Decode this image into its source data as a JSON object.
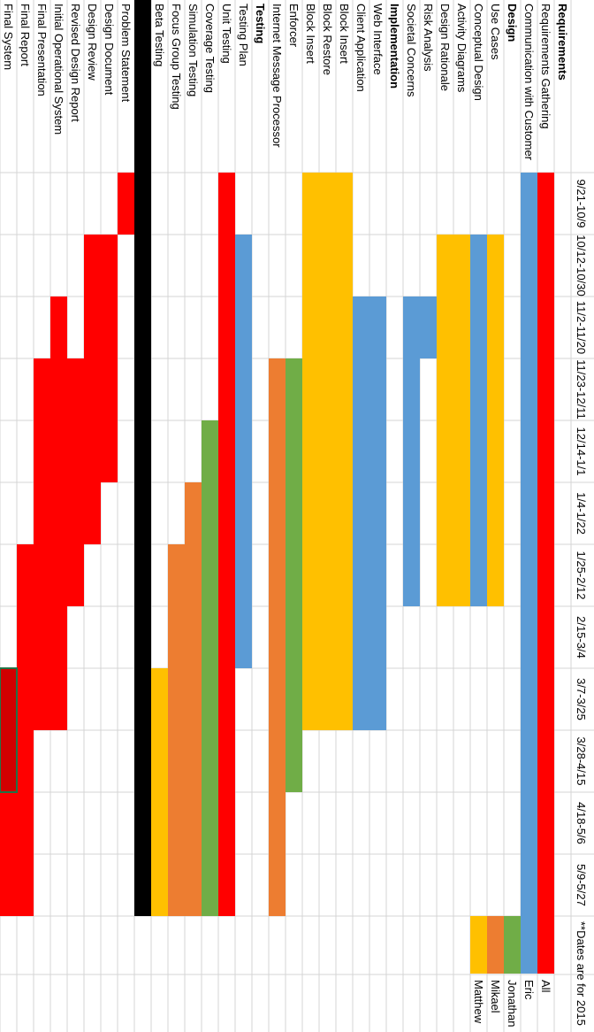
{
  "chart_data": {
    "type": "gantt",
    "periods": [
      "9/21-10/9",
      "10/12-10/30",
      "11/2-11/20",
      "11/23-12/11",
      "12/14-1/1",
      "1/4-1/22",
      "1/25-2/12",
      "2/15-3/4",
      "3/7-3/25",
      "3/28-4/15",
      "4/18-5/6",
      "5/9-5/27"
    ],
    "note": "**Dates are for 2015",
    "legend": [
      {
        "name": "All",
        "color": "#ff0000"
      },
      {
        "name": "Eric",
        "color": "#5b9bd5"
      },
      {
        "name": "Jonathan",
        "color": "#70ad47"
      },
      {
        "name": "Mikael",
        "color": "#ed7d31"
      },
      {
        "name": "Matthew",
        "color": "#ffc000"
      }
    ],
    "rows": [
      {
        "label": "Requirements",
        "bold": true
      },
      {
        "label": "Requirements Gathering",
        "color": "#ff0000",
        "start": 0,
        "end": 12
      },
      {
        "label": "Communication with Customer",
        "color": "#5b9bd5",
        "start": 0,
        "end": 12
      },
      {
        "label": "Design",
        "bold": true
      },
      {
        "label": "Use Cases",
        "color": "#ffc000",
        "start": 1,
        "end": 7
      },
      {
        "label": "Conceptual Design",
        "color": "#5b9bd5",
        "start": 1,
        "end": 7
      },
      {
        "label": "Activity Diagrams",
        "color": "#ffc000",
        "start": 1,
        "end": 7
      },
      {
        "label": "Design Rationale",
        "color": "#ffc000",
        "start": 1,
        "end": 7
      },
      {
        "label": "Risk Analysis",
        "color": "#5b9bd5",
        "start": 2,
        "end": 3
      },
      {
        "label": "Societal Concerns",
        "color": "#5b9bd5",
        "start": 2,
        "end": 7
      },
      {
        "label": "Implementation",
        "bold": true
      },
      {
        "label": "Web Interface",
        "color": "#5b9bd5",
        "start": 2,
        "end": 9
      },
      {
        "label": "Client Application",
        "color": "#5b9bd5",
        "start": 2,
        "end": 9
      },
      {
        "label": "Block Insert",
        "color": "#ffc000",
        "start": 0,
        "end": 9
      },
      {
        "label": "Block Restore",
        "color": "#ffc000",
        "start": 0,
        "end": 9
      },
      {
        "label": "Block Insert",
        "color": "#ffc000",
        "start": 0,
        "end": 9
      },
      {
        "label": "Enforcer",
        "color": "#70ad47",
        "start": 3,
        "end": 10
      },
      {
        "label": "Internet Message Processor",
        "color": "#ed7d31",
        "start": 3,
        "end": 12
      },
      {
        "label": "Testing",
        "bold": true
      },
      {
        "label": "Testing Plan",
        "color": "#5b9bd5",
        "start": 1,
        "end": 8
      },
      {
        "label": "Unit Testing",
        "color": "#ff0000",
        "start": 0,
        "end": 12
      },
      {
        "label": "Coverage Testing",
        "color": "#70ad47",
        "start": 4,
        "end": 12
      },
      {
        "label": "Simulation Testing",
        "color": "#ed7d31",
        "start": 5,
        "end": 12
      },
      {
        "label": "Focus Group Testing",
        "color": "#ed7d31",
        "start": 6,
        "end": 12
      },
      {
        "label": "Beta Testing",
        "color": "#ffc000",
        "start": 8,
        "end": 12
      },
      {
        "label": "",
        "color": "#000000",
        "separator": true
      },
      {
        "label": "Problem Statement",
        "color": "#ff0000",
        "start": 0,
        "end": 1
      },
      {
        "label": "Design Document",
        "color": "#ff0000",
        "start": 1,
        "end": 5
      },
      {
        "label": "Design Review",
        "color": "#ff0000",
        "start": 1,
        "end": 6
      },
      {
        "label": "Revised Design Report",
        "color": "#ff0000",
        "start": 3,
        "end": 7
      },
      {
        "label": "Initial Operational System",
        "color": "#ff0000",
        "start": 2,
        "end": 9
      },
      {
        "label": "Final Presentation",
        "color": "#ff0000",
        "start": 3,
        "end": 9
      },
      {
        "label": "Final Report",
        "color": "#ff0000",
        "start": 6,
        "end": 12
      },
      {
        "label": "Final System",
        "color": "#ff0000",
        "start": 8,
        "end": 12,
        "selected": true
      }
    ]
  }
}
